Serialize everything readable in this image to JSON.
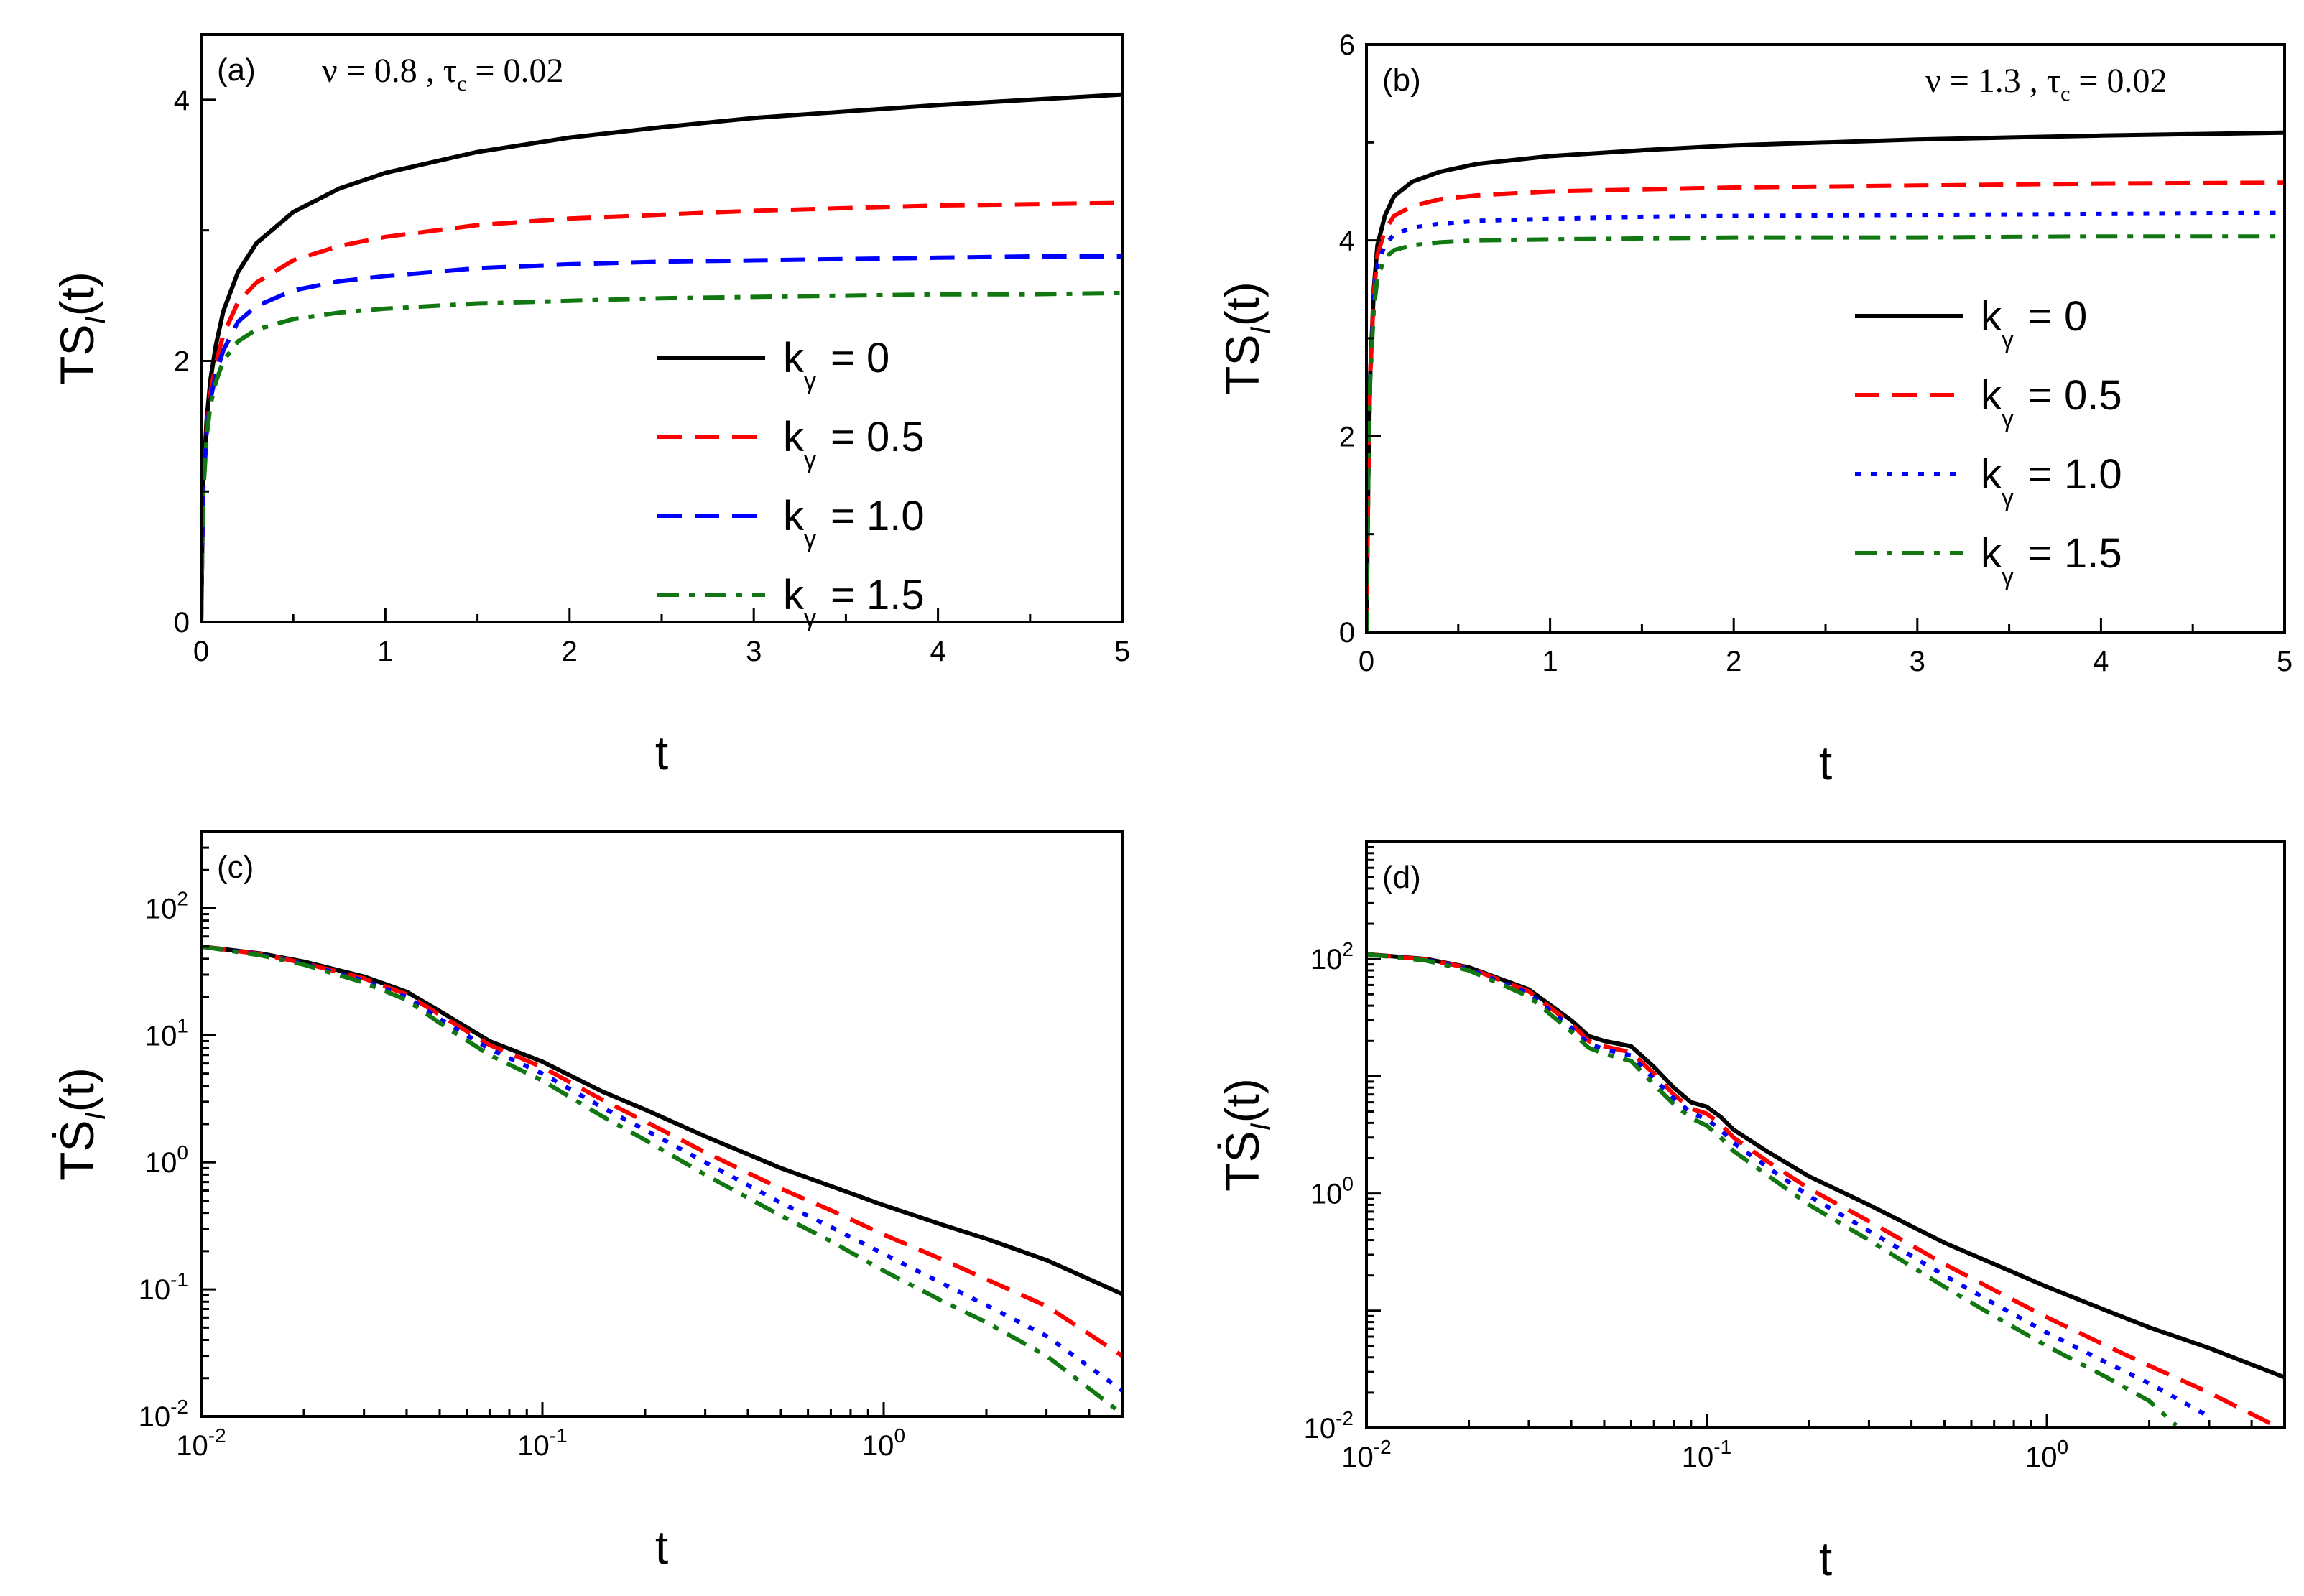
{
  "figure": {
    "colors": {
      "k0": "#000000",
      "k05": "#ff0000",
      "k10": "#0000ff",
      "k15": "#117711"
    }
  },
  "chart_data": [
    {
      "id": "a",
      "type": "line",
      "panel_label": "(a)",
      "annotation": "ν = 0.8 , τ",
      "annotation_sub": "c",
      "annotation_tail": " = 0.02",
      "xlabel": "t",
      "ylabel": "TS",
      "ylabel_sub": "I",
      "ylabel_tail": "(t)",
      "xscale": "linear",
      "yscale": "linear",
      "xlim": [
        0,
        5
      ],
      "ylim": [
        0,
        4.5
      ],
      "xticks": [
        0,
        1,
        2,
        3,
        4,
        5
      ],
      "xtick_labels": [
        "0",
        "1",
        "2",
        "3",
        "4",
        "5"
      ],
      "yticks": [
        0,
        2,
        4
      ],
      "ytick_labels": [
        "0",
        "2",
        "4"
      ],
      "legend_position": "center-right",
      "legend_prefix": "k",
      "legend_sub": "γ",
      "series": [
        {
          "name": "= 0",
          "color": "#000000",
          "dash": "solid",
          "x": [
            0,
            0.01,
            0.03,
            0.05,
            0.08,
            0.12,
            0.2,
            0.3,
            0.5,
            0.75,
            1,
            1.5,
            2,
            2.5,
            3,
            3.5,
            4,
            4.5,
            5
          ],
          "y": [
            0,
            1.05,
            1.55,
            1.85,
            2.12,
            2.38,
            2.68,
            2.9,
            3.14,
            3.32,
            3.44,
            3.6,
            3.71,
            3.79,
            3.86,
            3.91,
            3.96,
            4.0,
            4.04
          ]
        },
        {
          "name": "= 0.5",
          "color": "#ff0000",
          "dash": "dash",
          "x": [
            0,
            0.01,
            0.03,
            0.05,
            0.08,
            0.12,
            0.2,
            0.3,
            0.5,
            0.75,
            1,
            1.5,
            2,
            2.5,
            3,
            3.5,
            4,
            4.5,
            5
          ],
          "y": [
            0,
            1.0,
            1.48,
            1.75,
            1.98,
            2.2,
            2.45,
            2.6,
            2.77,
            2.88,
            2.95,
            3.04,
            3.09,
            3.12,
            3.15,
            3.17,
            3.19,
            3.2,
            3.21
          ]
        },
        {
          "name": "= 1.0",
          "color": "#0000ff",
          "dash": "dash",
          "x": [
            0,
            0.01,
            0.03,
            0.05,
            0.08,
            0.12,
            0.2,
            0.3,
            0.5,
            0.75,
            1,
            1.5,
            2,
            2.5,
            3,
            3.5,
            4,
            4.5,
            5
          ],
          "y": [
            0,
            0.98,
            1.45,
            1.7,
            1.9,
            2.08,
            2.3,
            2.42,
            2.54,
            2.61,
            2.65,
            2.71,
            2.74,
            2.76,
            2.77,
            2.78,
            2.79,
            2.8,
            2.8
          ]
        },
        {
          "name": "= 1.5",
          "color": "#117711",
          "dash": "dashdot",
          "x": [
            0,
            0.01,
            0.03,
            0.05,
            0.08,
            0.12,
            0.2,
            0.3,
            0.5,
            0.75,
            1,
            1.5,
            2,
            2.5,
            3,
            3.5,
            4,
            4.5,
            5
          ],
          "y": [
            0,
            0.96,
            1.42,
            1.66,
            1.84,
            2.0,
            2.15,
            2.24,
            2.32,
            2.37,
            2.4,
            2.44,
            2.46,
            2.48,
            2.49,
            2.5,
            2.51,
            2.51,
            2.52
          ]
        }
      ]
    },
    {
      "id": "b",
      "type": "line",
      "panel_label": "(b)",
      "annotation": "ν = 1.3 , τ",
      "annotation_sub": "c",
      "annotation_tail": " = 0.02",
      "xlabel": "t",
      "ylabel": "TS",
      "ylabel_sub": "I",
      "ylabel_tail": "(t)",
      "xscale": "linear",
      "yscale": "linear",
      "xlim": [
        0,
        5
      ],
      "ylim": [
        0,
        6
      ],
      "xticks": [
        0,
        1,
        2,
        3,
        4,
        5
      ],
      "xtick_labels": [
        "0",
        "1",
        "2",
        "3",
        "4",
        "5"
      ],
      "yticks": [
        0,
        2,
        4,
        6
      ],
      "ytick_labels": [
        "0",
        "2",
        "4",
        "6"
      ],
      "legend_position": "center-right",
      "legend_prefix": "k",
      "legend_sub": "γ",
      "series": [
        {
          "name": "= 0",
          "color": "#000000",
          "dash": "solid",
          "x": [
            0,
            0.01,
            0.02,
            0.04,
            0.06,
            0.1,
            0.15,
            0.25,
            0.4,
            0.6,
            1,
            1.5,
            2,
            3,
            4,
            5
          ],
          "y": [
            0,
            1.6,
            2.6,
            3.5,
            3.95,
            4.25,
            4.45,
            4.6,
            4.7,
            4.78,
            4.86,
            4.92,
            4.97,
            5.03,
            5.07,
            5.1
          ]
        },
        {
          "name": "= 0.5",
          "color": "#ff0000",
          "dash": "dash",
          "x": [
            0,
            0.01,
            0.02,
            0.04,
            0.06,
            0.1,
            0.15,
            0.25,
            0.4,
            0.6,
            1,
            1.5,
            2,
            3,
            4,
            5
          ],
          "y": [
            0,
            1.6,
            2.6,
            3.45,
            3.85,
            4.1,
            4.25,
            4.35,
            4.42,
            4.46,
            4.5,
            4.52,
            4.54,
            4.56,
            4.58,
            4.59
          ]
        },
        {
          "name": "= 1.0",
          "color": "#0000ff",
          "dash": "dot",
          "x": [
            0,
            0.01,
            0.02,
            0.04,
            0.06,
            0.1,
            0.15,
            0.25,
            0.4,
            0.6,
            1,
            1.5,
            2,
            3,
            4,
            5
          ],
          "y": [
            0,
            1.6,
            2.6,
            3.4,
            3.75,
            3.95,
            4.06,
            4.13,
            4.17,
            4.2,
            4.22,
            4.24,
            4.25,
            4.26,
            4.27,
            4.28
          ]
        },
        {
          "name": "= 1.5",
          "color": "#117711",
          "dash": "dashdot",
          "x": [
            0,
            0.01,
            0.02,
            0.04,
            0.06,
            0.1,
            0.15,
            0.25,
            0.4,
            0.6,
            1,
            1.5,
            2,
            3,
            4,
            5
          ],
          "y": [
            0,
            1.6,
            2.55,
            3.3,
            3.62,
            3.82,
            3.9,
            3.95,
            3.98,
            4.0,
            4.01,
            4.02,
            4.03,
            4.03,
            4.04,
            4.04
          ]
        }
      ]
    },
    {
      "id": "c",
      "type": "line",
      "panel_label": "(c)",
      "xlabel": "t",
      "ylabel": "TṠ",
      "ylabel_sub": "I",
      "ylabel_tail": "(t)",
      "xscale": "log",
      "yscale": "log",
      "xlim": [
        0.01,
        5
      ],
      "ylim": [
        0.01,
        400
      ],
      "xticks": [
        0.01,
        0.1,
        1
      ],
      "xtick_labels": [
        [
          "10",
          "-2"
        ],
        [
          "10",
          "-1"
        ],
        [
          "10",
          "0"
        ]
      ],
      "yticks": [
        0.01,
        0.1,
        1,
        10,
        100
      ],
      "ytick_labels": [
        [
          "10",
          "-2"
        ],
        [
          "10",
          "-1"
        ],
        [
          "10",
          "0"
        ],
        [
          "10",
          "1"
        ],
        [
          "10",
          "2"
        ]
      ],
      "series": [
        {
          "name": "k_γ = 0",
          "color": "#000000",
          "dash": "solid",
          "x": [
            0.01,
            0.015,
            0.02,
            0.03,
            0.04,
            0.05,
            0.07,
            0.1,
            0.15,
            0.2,
            0.3,
            0.5,
            0.7,
            1,
            1.5,
            2,
            3,
            5
          ],
          "y": [
            50,
            44,
            38,
            29,
            22,
            15.5,
            9,
            6.2,
            3.6,
            2.6,
            1.6,
            0.9,
            0.65,
            0.46,
            0.32,
            0.25,
            0.17,
            0.092
          ]
        },
        {
          "name": "k_γ = 0.5",
          "color": "#ff0000",
          "dash": "dash",
          "x": [
            0.01,
            0.015,
            0.02,
            0.03,
            0.04,
            0.05,
            0.07,
            0.1,
            0.15,
            0.2,
            0.3,
            0.5,
            0.7,
            1,
            1.5,
            2,
            3,
            5
          ],
          "y": [
            50,
            43.5,
            37,
            28,
            21,
            14.5,
            8.4,
            5.6,
            3.1,
            2.1,
            1.2,
            0.62,
            0.42,
            0.27,
            0.17,
            0.12,
            0.074,
            0.03
          ]
        },
        {
          "name": "k_γ = 1.0",
          "color": "#0000ff",
          "dash": "dot",
          "x": [
            0.01,
            0.015,
            0.02,
            0.03,
            0.04,
            0.05,
            0.07,
            0.1,
            0.15,
            0.2,
            0.3,
            0.5,
            0.7,
            1,
            1.5,
            2,
            3,
            5
          ],
          "y": [
            50,
            43,
            36.5,
            27,
            20,
            13.5,
            7.8,
            5.0,
            2.7,
            1.8,
            1.0,
            0.48,
            0.31,
            0.19,
            0.11,
            0.075,
            0.043,
            0.016
          ]
        },
        {
          "name": "k_γ = 1.5",
          "color": "#117711",
          "dash": "dashdot",
          "x": [
            0.01,
            0.015,
            0.02,
            0.03,
            0.04,
            0.05,
            0.07,
            0.1,
            0.15,
            0.2,
            0.3,
            0.5,
            0.7,
            1,
            1.5,
            2,
            3,
            5
          ],
          "y": [
            50,
            42.5,
            36,
            26,
            19,
            12.5,
            7.0,
            4.4,
            2.3,
            1.5,
            0.8,
            0.38,
            0.24,
            0.14,
            0.08,
            0.055,
            0.03,
            0.0105
          ]
        }
      ]
    },
    {
      "id": "d",
      "type": "line",
      "panel_label": "(d)",
      "xlabel": "t",
      "ylabel": "TṠ",
      "ylabel_sub": "I",
      "ylabel_tail": "(t)",
      "xscale": "log",
      "yscale": "log",
      "xlim": [
        0.01,
        5
      ],
      "ylim": [
        0.01,
        1000
      ],
      "xticks": [
        0.01,
        0.1,
        1
      ],
      "xtick_labels": [
        [
          "10",
          "-2"
        ],
        [
          "10",
          "-1"
        ],
        [
          "10",
          "0"
        ]
      ],
      "yticks": [
        0.01,
        1,
        100
      ],
      "ytick_labels": [
        [
          "10",
          "-2"
        ],
        [
          "10",
          "0"
        ],
        [
          "10",
          "2"
        ]
      ],
      "series": [
        {
          "name": "k_γ = 0",
          "color": "#000000",
          "dash": "solid",
          "x": [
            0.01,
            0.015,
            0.02,
            0.03,
            0.04,
            0.045,
            0.05,
            0.06,
            0.07,
            0.08,
            0.09,
            0.1,
            0.11,
            0.12,
            0.15,
            0.2,
            0.3,
            0.5,
            0.7,
            1,
            1.5,
            2,
            3,
            5
          ],
          "y": [
            110,
            100,
            85,
            55,
            30,
            22,
            20,
            18,
            12,
            8,
            6,
            5.5,
            4.5,
            3.5,
            2.3,
            1.4,
            0.8,
            0.38,
            0.25,
            0.16,
            0.1,
            0.072,
            0.048,
            0.027
          ]
        },
        {
          "name": "k_γ = 0.5",
          "color": "#ff0000",
          "dash": "dash",
          "x": [
            0.01,
            0.015,
            0.02,
            0.03,
            0.04,
            0.045,
            0.05,
            0.06,
            0.07,
            0.08,
            0.09,
            0.1,
            0.11,
            0.12,
            0.15,
            0.2,
            0.3,
            0.5,
            0.7,
            1,
            1.5,
            2,
            3,
            5
          ],
          "y": [
            110,
            99,
            84,
            53,
            28,
            20,
            18,
            16,
            10.5,
            7,
            5.3,
            4.8,
            3.9,
            3.0,
            1.9,
            1.1,
            0.58,
            0.25,
            0.15,
            0.088,
            0.05,
            0.034,
            0.02,
            0.0095
          ]
        },
        {
          "name": "k_γ = 1.0",
          "color": "#0000ff",
          "dash": "dot",
          "x": [
            0.01,
            0.015,
            0.02,
            0.03,
            0.04,
            0.045,
            0.05,
            0.06,
            0.07,
            0.08,
            0.09,
            0.1,
            0.11,
            0.12,
            0.15,
            0.2,
            0.3,
            0.5,
            0.7,
            1,
            1.5,
            2,
            3
          ],
          "y": [
            110,
            98,
            82,
            51,
            26,
            19,
            17,
            15,
            9.5,
            6.5,
            4.9,
            4.3,
            3.5,
            2.7,
            1.7,
            0.95,
            0.48,
            0.2,
            0.115,
            0.065,
            0.036,
            0.024,
            0.0125
          ]
        },
        {
          "name": "k_γ = 1.5",
          "color": "#117711",
          "dash": "dashdot",
          "x": [
            0.01,
            0.015,
            0.02,
            0.03,
            0.04,
            0.045,
            0.05,
            0.06,
            0.07,
            0.08,
            0.09,
            0.1,
            0.11,
            0.12,
            0.15,
            0.2,
            0.3,
            0.5,
            0.7,
            1,
            1.5,
            2,
            2.4
          ],
          "y": [
            110,
            97,
            80,
            48,
            24,
            17.5,
            15.5,
            13.5,
            8.5,
            5.8,
            4.4,
            3.8,
            3.0,
            2.3,
            1.45,
            0.8,
            0.4,
            0.16,
            0.09,
            0.05,
            0.027,
            0.017,
            0.0105
          ]
        }
      ]
    }
  ]
}
